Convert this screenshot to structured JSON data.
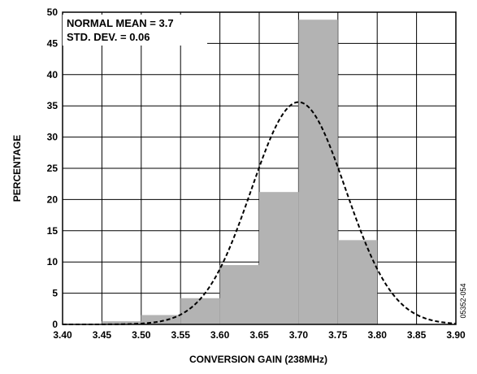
{
  "chart_data": {
    "type": "bar",
    "title": "",
    "xlabel": "CONVERSION GAIN (238MHz)",
    "ylabel": "PERCENTAGE",
    "xlim": [
      3.4,
      3.9
    ],
    "ylim": [
      0,
      50
    ],
    "xticks": [
      "3.40",
      "3.45",
      "3.50",
      "3.55",
      "3.60",
      "3.65",
      "3.70",
      "3.75",
      "3.80",
      "3.85",
      "3.90"
    ],
    "yticks": [
      "0",
      "5",
      "10",
      "15",
      "20",
      "25",
      "30",
      "35",
      "40",
      "45",
      "50"
    ],
    "grid": true,
    "bin_width": 0.05,
    "bin_starts": [
      3.45,
      3.5,
      3.55,
      3.6,
      3.65,
      3.7,
      3.75
    ],
    "values": [
      0.5,
      1.5,
      4.2,
      9.5,
      21.2,
      48.8,
      13.5
    ],
    "bar_color": "#b3b3b3",
    "normal_fit": {
      "mean": 3.7,
      "std_dev": 0.06,
      "peak": 35.6,
      "style": "dashed"
    },
    "annotations": [
      "NORMAL MEAN = 3.7",
      "STD. DEV. = 0.06"
    ],
    "figure_code": "05352-054"
  }
}
